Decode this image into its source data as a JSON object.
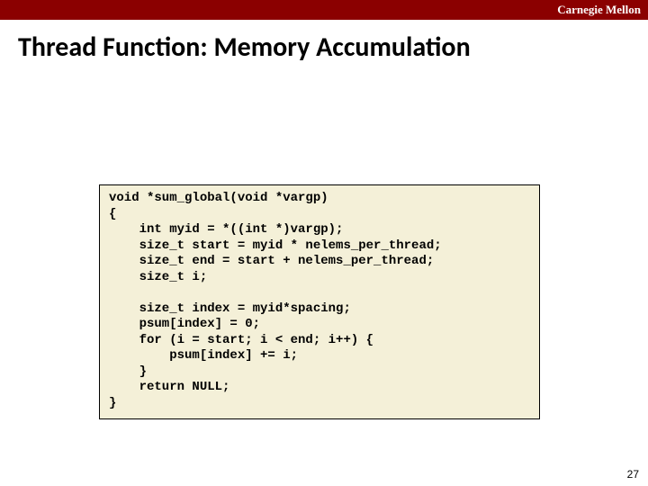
{
  "header": {
    "institution": "Carnegie Mellon",
    "bar_color": "#8b0000",
    "text_color": "#ffffff"
  },
  "slide": {
    "title": "Thread Function: Memory Accumulation",
    "title_color": "#000000",
    "background": "#ffffff",
    "page_number": "27"
  },
  "code": {
    "background": "#f4f0d8",
    "border_color": "#000000",
    "font_family": "Courier New",
    "lines": [
      "void *sum_global(void *vargp)",
      "{",
      "    int myid = *((int *)vargp);",
      "    size_t start = myid * nelems_per_thread;",
      "    size_t end = start + nelems_per_thread;",
      "    size_t i;",
      "",
      "    size_t index = myid*spacing;",
      "    psum[index] = 0;",
      "    for (i = start; i < end; i++) {",
      "        psum[index] += i;",
      "    }",
      "    return NULL;",
      "}"
    ]
  }
}
